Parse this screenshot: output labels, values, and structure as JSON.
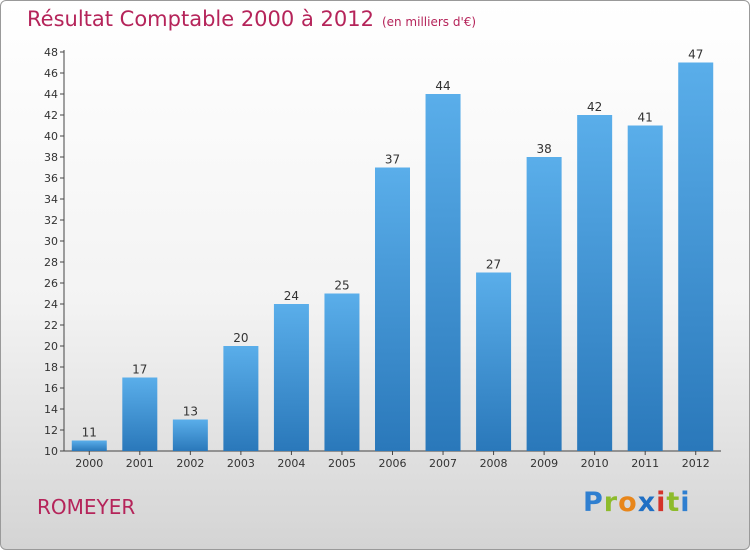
{
  "chart_data": {
    "type": "bar",
    "title": "Résultat Comptable 2000 à 2012",
    "unit_note": "(en milliers d'€)",
    "categories": [
      "2000",
      "2001",
      "2002",
      "2003",
      "2004",
      "2005",
      "2006",
      "2007",
      "2008",
      "2009",
      "2010",
      "2011",
      "2012"
    ],
    "values": [
      11,
      17,
      13,
      20,
      24,
      25,
      37,
      44,
      27,
      38,
      42,
      41,
      47
    ],
    "ylim": [
      10,
      48
    ],
    "ytick_step": 2,
    "xlabel": "",
    "ylabel": "",
    "grid": false,
    "bar_color": "#3f94d8",
    "legend": "none"
  },
  "commune": "ROMEYER",
  "logo": {
    "letters": [
      "P",
      "r",
      "o",
      "x",
      "i",
      "t",
      "i"
    ],
    "colors": [
      "#2f7fd0",
      "#8dbb2b",
      "#e8861a",
      "#1f6fc4",
      "#d4332b",
      "#8dbb2b",
      "#2f7fd0"
    ]
  }
}
